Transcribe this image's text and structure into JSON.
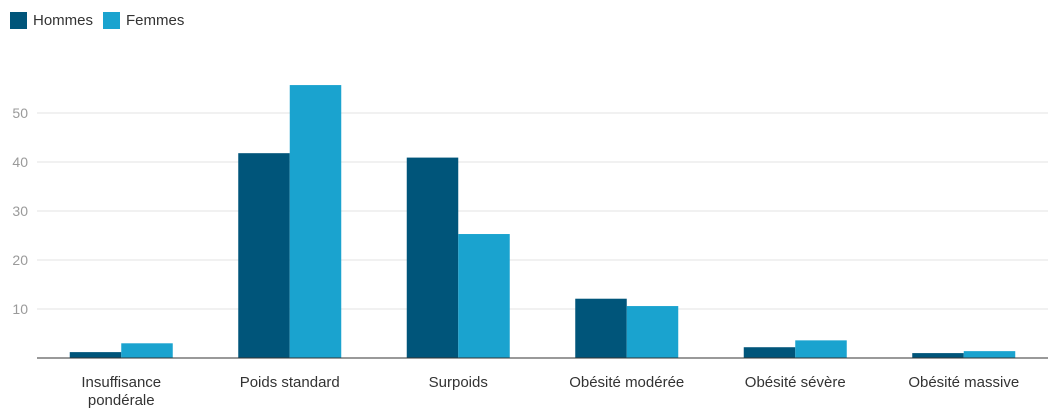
{
  "chart_data": {
    "type": "bar",
    "categories": [
      [
        "Insuffisance",
        "pondérale"
      ],
      [
        "Poids standard"
      ],
      [
        "Surpoids"
      ],
      [
        "Obésité modérée"
      ],
      [
        "Obésité sévère"
      ],
      [
        "Obésité massive"
      ]
    ],
    "series": [
      {
        "name": "Hommes",
        "color": "#00557a",
        "values": [
          1.2,
          41.8,
          40.9,
          12.1,
          2.2,
          1.0
        ]
      },
      {
        "name": "Femmes",
        "color": "#1aa3cf",
        "values": [
          3.0,
          55.7,
          25.3,
          10.6,
          3.6,
          1.4
        ]
      }
    ],
    "yticks": [
      10,
      20,
      30,
      40,
      50
    ],
    "ylim": [
      0,
      60
    ],
    "grid": true,
    "legend_position": "top-left"
  }
}
